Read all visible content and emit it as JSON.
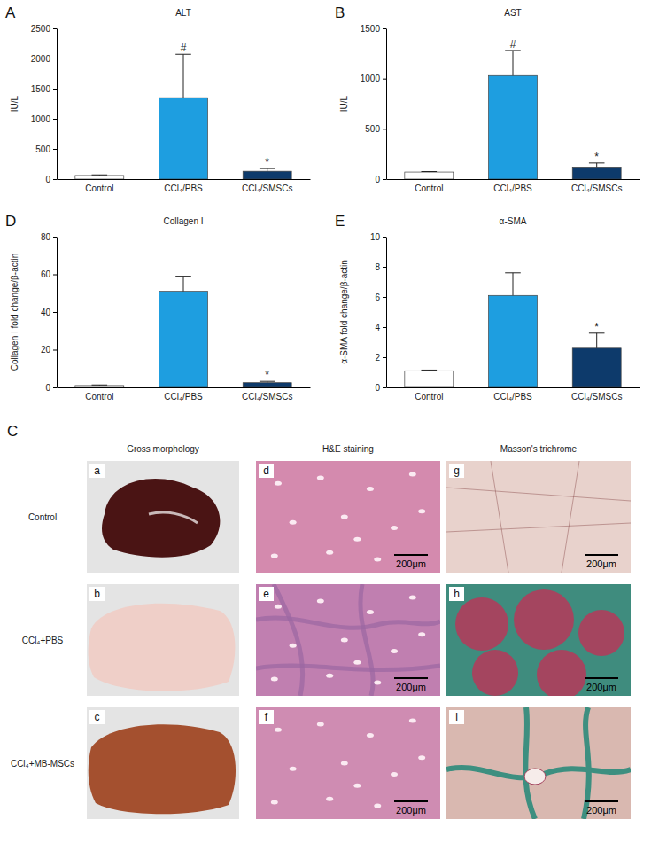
{
  "chart_data": [
    {
      "type": "bar",
      "panel_label": "A",
      "title": "ALT",
      "y_label": "IU/L",
      "categories": [
        "Control",
        "CCl₄/PBS",
        "CCl₄/SMSCs"
      ],
      "values": [
        60,
        1350,
        130
      ],
      "errors": [
        10,
        720,
        45
      ],
      "annotations": [
        null,
        "#",
        "*"
      ],
      "colors": [
        "#ffffff",
        "#1e9ee0",
        "#0d3a6b"
      ],
      "ylim": [
        0,
        2500
      ],
      "yticks": [
        0,
        500,
        1000,
        1500,
        2000,
        2500
      ]
    },
    {
      "type": "bar",
      "panel_label": "B",
      "title": "AST",
      "y_label": "IU/L",
      "categories": [
        "Control",
        "CCl₄/PBS",
        "CCl₄/SMSCs"
      ],
      "values": [
        70,
        1030,
        120
      ],
      "errors": [
        5,
        250,
        40
      ],
      "annotations": [
        null,
        "#",
        "*"
      ],
      "colors": [
        "#ffffff",
        "#1e9ee0",
        "#0d3a6b"
      ],
      "ylim": [
        0,
        1500
      ],
      "yticks": [
        0,
        500,
        1000,
        1500
      ]
    },
    {
      "type": "bar",
      "panel_label": "D",
      "title": "Collagen I",
      "y_label": "Collagen I fold change/β-actin",
      "categories": [
        "Control",
        "CCl₄/PBS",
        "CCl₄/SMSCs"
      ],
      "values": [
        1,
        51,
        2.5
      ],
      "errors": [
        0.3,
        8,
        0.7
      ],
      "annotations": [
        null,
        null,
        "*"
      ],
      "colors": [
        "#ffffff",
        "#1e9ee0",
        "#0d3a6b"
      ],
      "ylim": [
        0,
        80
      ],
      "yticks": [
        0,
        20,
        40,
        60,
        80
      ]
    },
    {
      "type": "bar",
      "panel_label": "E",
      "title": "α-SMA",
      "y_label": "α-SMA fold change/β-actin",
      "categories": [
        "Control",
        "CCl₄/PBS",
        "CCl₄/SMSCs"
      ],
      "values": [
        1.1,
        6.1,
        2.6
      ],
      "errors": [
        0.05,
        1.5,
        1.0
      ],
      "annotations": [
        null,
        null,
        "*"
      ],
      "colors": [
        "#ffffff",
        "#1e9ee0",
        "#0d3a6b"
      ],
      "ylim": [
        0,
        10
      ],
      "yticks": [
        0,
        2,
        4,
        6,
        8,
        10
      ]
    }
  ],
  "image_panel": {
    "panel_label": "C",
    "column_headers": [
      "Gross morphology",
      "H&E staining",
      "Masson's trichrome"
    ],
    "row_labels": [
      "Control",
      "CCl₄+PBS",
      "CCl₄+MB-MSCs"
    ],
    "image_letters": [
      [
        "a",
        "d",
        "g"
      ],
      [
        "b",
        "e",
        "h"
      ],
      [
        "c",
        "f",
        "i"
      ]
    ],
    "scale_bar": "200μm"
  }
}
